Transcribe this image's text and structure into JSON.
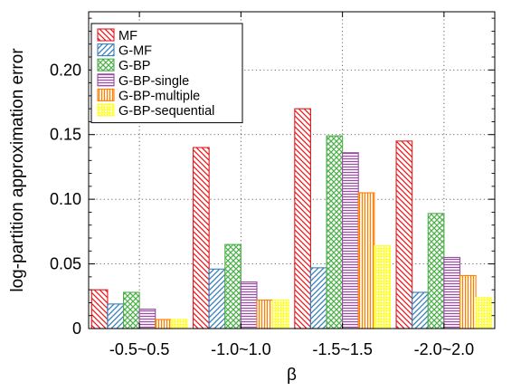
{
  "chart_data": {
    "type": "bar",
    "xlabel": "β",
    "ylabel": "log-partition approximation error",
    "categories": [
      "-0.5~0.5",
      "-1.0~1.0",
      "-1.5~1.5",
      "-2.0~2.0"
    ],
    "ylim": [
      0,
      0.245
    ],
    "yticks": [
      0,
      0.05,
      0.1,
      0.15,
      0.2
    ],
    "ytick_labels": [
      "0",
      "0.05",
      "0.10",
      "0.15",
      "0.20"
    ],
    "grid": true,
    "legend_position": "top-left",
    "series": [
      {
        "name": "MF",
        "color": "#e41a1c",
        "pattern": "diag-back",
        "values": [
          0.03,
          0.14,
          0.17,
          0.145
        ]
      },
      {
        "name": "G-MF",
        "color": "#377eb8",
        "pattern": "diag-fwd",
        "values": [
          0.019,
          0.046,
          0.047,
          0.028
        ]
      },
      {
        "name": "G-BP",
        "color": "#4daf4a",
        "pattern": "crosshatch",
        "values": [
          0.028,
          0.065,
          0.149,
          0.089
        ]
      },
      {
        "name": "G-BP-single",
        "color": "#984ea3",
        "pattern": "horizontal",
        "values": [
          0.015,
          0.036,
          0.136,
          0.055
        ]
      },
      {
        "name": "G-BP-multiple",
        "color": "#ff7f00",
        "pattern": "vertical",
        "values": [
          0.007,
          0.022,
          0.105,
          0.041
        ]
      },
      {
        "name": "G-BP-sequential",
        "color": "#ffff33",
        "pattern": "grid",
        "values": [
          0.007,
          0.022,
          0.064,
          0.024
        ]
      }
    ]
  }
}
